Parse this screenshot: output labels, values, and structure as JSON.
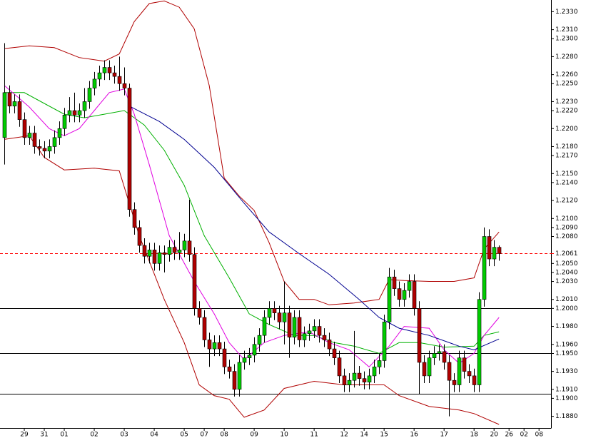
{
  "chart_data": {
    "type": "candlestick",
    "xlim": [
      -0.86,
      109.4
    ],
    "ylim": [
      1.1867,
      1.2343
    ],
    "xticks": [
      {
        "value": 4,
        "label": "29"
      },
      {
        "value": 8,
        "label": "31"
      },
      {
        "value": 12,
        "label": "01"
      },
      {
        "value": 18,
        "label": "02"
      },
      {
        "value": 24,
        "label": "03"
      },
      {
        "value": 30,
        "label": "04"
      },
      {
        "value": 36,
        "label": "05"
      },
      {
        "value": 40,
        "label": "07"
      },
      {
        "value": 44,
        "label": "08"
      },
      {
        "value": 50,
        "label": "09"
      },
      {
        "value": 56,
        "label": "10"
      },
      {
        "value": 62,
        "label": "11"
      },
      {
        "value": 68,
        "label": "12"
      },
      {
        "value": 72,
        "label": "14"
      },
      {
        "value": 76,
        "label": "15"
      },
      {
        "value": 82,
        "label": "16"
      },
      {
        "value": 88,
        "label": "17"
      },
      {
        "value": 94,
        "label": "18"
      },
      {
        "value": 98,
        "label": "20"
      },
      {
        "value": 101,
        "label": "26"
      },
      {
        "value": 104,
        "label": "02"
      },
      {
        "value": 107,
        "label": "08"
      }
    ],
    "yticks": [
      {
        "value": 1.233,
        "label": "1.2330"
      },
      {
        "value": 1.231,
        "label": "1.2310"
      },
      {
        "value": 1.23,
        "label": "1.2300"
      },
      {
        "value": 1.228,
        "label": "1.2280"
      },
      {
        "value": 1.226,
        "label": "1.2260"
      },
      {
        "value": 1.225,
        "label": "1.2250"
      },
      {
        "value": 1.223,
        "label": "1.2230"
      },
      {
        "value": 1.222,
        "label": "1.2220"
      },
      {
        "value": 1.22,
        "label": "1.2200"
      },
      {
        "value": 1.218,
        "label": "1.2180"
      },
      {
        "value": 1.217,
        "label": "1.2170"
      },
      {
        "value": 1.215,
        "label": "1.2150"
      },
      {
        "value": 1.214,
        "label": "1.2140"
      },
      {
        "value": 1.212,
        "label": "1.2120"
      },
      {
        "value": 1.21,
        "label": "1.2100"
      },
      {
        "value": 1.209,
        "label": "1.2090"
      },
      {
        "value": 1.208,
        "label": "1.2080"
      },
      {
        "value": 1.205,
        "label": "1.2050"
      },
      {
        "value": 1.204,
        "label": "1.2040"
      },
      {
        "value": 1.203,
        "label": "1.2030"
      },
      {
        "value": 1.201,
        "label": "1.2010"
      },
      {
        "value": 1.2,
        "label": "1.2000"
      },
      {
        "value": 1.198,
        "label": "1.1980"
      },
      {
        "value": 1.196,
        "label": "1.1960"
      },
      {
        "value": 1.193,
        "label": "1.1930"
      },
      {
        "value": 1.191,
        "label": "1.1910"
      },
      {
        "value": 1.19,
        "label": "1.1900"
      },
      {
        "value": 1.188,
        "label": "1.1880"
      }
    ],
    "hlines": [
      1.2,
      1.1905
    ],
    "marked_level": {
      "value": 1.195,
      "label": "1.1950",
      "color": "#0000ff"
    },
    "current_price": {
      "value": 1.2061,
      "label": "1.2061",
      "color": "#ff0000"
    },
    "up_color": "#00cc00",
    "down_color": "#b00000",
    "open": [
      1.219,
      1.224,
      1.2225,
      1.223,
      1.221,
      1.219,
      1.2195,
      1.218,
      1.2178,
      1.2175,
      1.218,
      1.219,
      1.22,
      1.2215,
      1.222,
      1.2215,
      1.222,
      1.223,
      1.2245,
      1.2255,
      1.2262,
      1.2268,
      1.2262,
      1.2258,
      1.225,
      1.2245,
      1.211,
      1.209,
      1.207,
      1.2058,
      1.2065,
      1.205,
      1.2062,
      1.206,
      1.2068,
      1.2062,
      1.2065,
      1.2075,
      1.206,
      1.2,
      1.199,
      1.1965,
      1.1955,
      1.1962,
      1.1955,
      1.1935,
      1.193,
      1.191,
      1.194,
      1.1945,
      1.1948,
      1.196,
      1.197,
      1.199,
      1.2,
      1.1995,
      1.1985,
      1.1995,
      1.1968,
      1.199,
      1.1965,
      1.1972,
      1.1975,
      1.198,
      1.197,
      1.1965,
      1.1955,
      1.1945,
      1.1925,
      1.1915,
      1.192,
      1.1928,
      1.1922,
      1.1918,
      1.1925,
      1.1935,
      1.1942,
      1.1985,
      1.2035,
      1.2022,
      1.201,
      1.202,
      1.203,
      1.2,
      1.194,
      1.1925,
      1.1945,
      1.195,
      1.1952,
      1.194,
      1.192,
      1.1915,
      1.1945,
      1.193,
      1.1925,
      1.1915,
      1.201,
      1.208,
      1.2055,
      1.2068
    ],
    "high": [
      1.2295,
      1.2248,
      1.2238,
      1.2238,
      1.2218,
      1.2203,
      1.2203,
      1.2188,
      1.2186,
      1.2188,
      1.2198,
      1.2208,
      1.2223,
      1.2235,
      1.224,
      1.2228,
      1.2245,
      1.2253,
      1.2263,
      1.227,
      1.2276,
      1.2276,
      1.227,
      1.228,
      1.2268,
      1.225,
      1.2118,
      1.2098,
      1.2078,
      1.2073,
      1.2073,
      1.207,
      1.207,
      1.2076,
      1.2076,
      1.2085,
      1.2083,
      1.2121,
      1.2068,
      1.2008,
      1.1998,
      1.1973,
      1.197,
      1.197,
      1.1963,
      1.1943,
      1.1938,
      1.1948,
      1.1953,
      1.1956,
      1.1968,
      1.1978,
      1.1998,
      1.2008,
      1.2008,
      1.2003,
      1.203,
      1.2003,
      1.1998,
      1.1998,
      1.198,
      1.1983,
      1.1988,
      1.1988,
      1.1978,
      1.1973,
      1.1963,
      1.1953,
      1.1933,
      1.1928,
      1.1975,
      1.1936,
      1.193,
      1.1933,
      1.1943,
      1.195,
      1.1993,
      1.2045,
      1.2043,
      1.203,
      1.2028,
      1.2038,
      1.2038,
      1.2008,
      1.1948,
      1.1953,
      1.1958,
      1.196,
      1.196,
      1.1948,
      1.1928,
      1.1953,
      1.1953,
      1.1938,
      1.1933,
      1.2018,
      1.209,
      1.2088,
      1.2076,
      1.207
    ],
    "low": [
      1.216,
      1.2217,
      1.2217,
      1.2202,
      1.2182,
      1.2182,
      1.2172,
      1.217,
      1.2167,
      1.2167,
      1.2172,
      1.2182,
      1.2192,
      1.2207,
      1.2207,
      1.2207,
      1.2212,
      1.2222,
      1.2237,
      1.2247,
      1.2254,
      1.2254,
      1.225,
      1.2242,
      1.2237,
      1.2102,
      1.2082,
      1.2062,
      1.205,
      1.205,
      1.2042,
      1.2042,
      1.204,
      1.2052,
      1.2054,
      1.2054,
      1.2057,
      1.2052,
      1.1992,
      1.1982,
      1.1957,
      1.1935,
      1.1947,
      1.1947,
      1.1927,
      1.1922,
      1.1902,
      1.1902,
      1.1932,
      1.1937,
      1.194,
      1.1952,
      1.1962,
      1.1982,
      1.1987,
      1.1977,
      1.196,
      1.1945,
      1.196,
      1.1957,
      1.1957,
      1.1964,
      1.1967,
      1.1962,
      1.1957,
      1.1947,
      1.1937,
      1.1917,
      1.1907,
      1.1907,
      1.1912,
      1.1914,
      1.191,
      1.191,
      1.1917,
      1.1927,
      1.1934,
      1.1977,
      1.2014,
      1.2002,
      1.2002,
      1.2012,
      1.1992,
      1.1905,
      1.1917,
      1.1917,
      1.1937,
      1.1942,
      1.1932,
      1.188,
      1.1907,
      1.1907,
      1.1922,
      1.1917,
      1.1907,
      1.1907,
      1.2002,
      1.2047,
      1.2047,
      1.2053
    ],
    "close": [
      1.224,
      1.2225,
      1.223,
      1.221,
      1.219,
      1.2195,
      1.218,
      1.2178,
      1.2175,
      1.218,
      1.219,
      1.22,
      1.2215,
      1.222,
      1.2215,
      1.222,
      1.223,
      1.2245,
      1.2255,
      1.2262,
      1.2268,
      1.2262,
      1.2258,
      1.225,
      1.2245,
      1.211,
      1.209,
      1.207,
      1.2058,
      1.2065,
      1.205,
      1.2062,
      1.206,
      1.2068,
      1.2062,
      1.2065,
      1.2075,
      1.206,
      1.2,
      1.199,
      1.1965,
      1.1955,
      1.1962,
      1.1955,
      1.1935,
      1.193,
      1.191,
      1.194,
      1.1945,
      1.1948,
      1.196,
      1.197,
      1.199,
      1.2,
      1.1995,
      1.1985,
      1.1995,
      1.1968,
      1.199,
      1.1965,
      1.1972,
      1.1975,
      1.198,
      1.197,
      1.1965,
      1.1955,
      1.1945,
      1.1925,
      1.1915,
      1.192,
      1.1928,
      1.1922,
      1.1918,
      1.1925,
      1.1935,
      1.1942,
      1.1985,
      1.2035,
      1.2022,
      1.201,
      1.202,
      1.203,
      1.2,
      1.194,
      1.1925,
      1.1945,
      1.195,
      1.1952,
      1.194,
      1.192,
      1.1915,
      1.1945,
      1.193,
      1.1925,
      1.1915,
      1.201,
      1.208,
      1.2055,
      1.2068,
      1.2061
    ],
    "lines": [
      {
        "color": "#b00000",
        "x": [
          0,
          5,
          10,
          15,
          20,
          23,
          26,
          29,
          32,
          35,
          38,
          41,
          44,
          47,
          50,
          53,
          56,
          59,
          62,
          65,
          70,
          75,
          77,
          80,
          85,
          90,
          94,
          96,
          99
        ],
        "values": [
          1.2289,
          1.2292,
          1.229,
          1.2279,
          1.2275,
          1.2283,
          1.2319,
          1.2339,
          1.2342,
          1.2335,
          1.2311,
          1.2248,
          1.2145,
          1.2125,
          1.2109,
          1.2073,
          1.203,
          1.201,
          1.201,
          1.2004,
          1.2006,
          1.201,
          1.2032,
          1.2031,
          1.203,
          1.203,
          1.2034,
          1.2066,
          1.2085
        ]
      },
      {
        "color": "#b00000",
        "x": [
          0,
          5,
          8,
          12,
          18,
          23,
          27,
          32,
          36,
          39,
          42,
          45,
          48,
          52,
          56,
          62,
          68,
          76,
          79,
          85,
          91,
          94,
          99
        ],
        "values": [
          1.2188,
          1.2192,
          1.2168,
          1.2154,
          1.2156,
          1.2153,
          1.2081,
          1.201,
          1.1962,
          1.1915,
          1.1903,
          1.1899,
          1.1879,
          1.1887,
          1.1911,
          1.1919,
          1.1915,
          1.1915,
          1.1903,
          1.1891,
          1.1887,
          1.1883,
          1.1871
        ]
      },
      {
        "color": "#00b000",
        "x": [
          0,
          4,
          8,
          12,
          16,
          20,
          24,
          28,
          32,
          36,
          40,
          45,
          49,
          53,
          58,
          62,
          66,
          70,
          75,
          79,
          83,
          88,
          94,
          96,
          99
        ],
        "values": [
          1.224,
          1.224,
          1.2228,
          1.2216,
          1.2212,
          1.2216,
          1.222,
          1.2204,
          1.2176,
          1.2137,
          1.2081,
          1.2034,
          1.1994,
          1.1982,
          1.197,
          1.197,
          1.1962,
          1.1958,
          1.195,
          1.1962,
          1.1962,
          1.1957,
          1.1958,
          1.197,
          1.1974
        ]
      },
      {
        "color": "#e000e0",
        "x": [
          0,
          5,
          9,
          12,
          15,
          18,
          21,
          24,
          26,
          29,
          33,
          38,
          42,
          45,
          48,
          52,
          56,
          61,
          65,
          69,
          73,
          77,
          80,
          85,
          88,
          91,
          94,
          96,
          99
        ],
        "values": [
          1.2248,
          1.2224,
          1.22,
          1.2192,
          1.22,
          1.222,
          1.224,
          1.2244,
          1.2216,
          1.216,
          1.2081,
          1.203,
          1.1994,
          1.1962,
          1.1943,
          1.1962,
          1.197,
          1.1974,
          1.1962,
          1.1954,
          1.1935,
          1.1958,
          1.198,
          1.1978,
          1.1954,
          1.1939,
          1.195,
          1.197,
          1.199
        ]
      },
      {
        "color": "#000090",
        "x": [
          25,
          31,
          36,
          42,
          48,
          53,
          59,
          65,
          71,
          75,
          79,
          85,
          91,
          94,
          99
        ],
        "values": [
          1.2225,
          1.2208,
          1.2188,
          1.2157,
          1.2117,
          1.2085,
          1.2061,
          1.2038,
          1.201,
          1.199,
          1.1978,
          1.197,
          1.1958,
          1.1954,
          1.1966
        ]
      }
    ]
  }
}
